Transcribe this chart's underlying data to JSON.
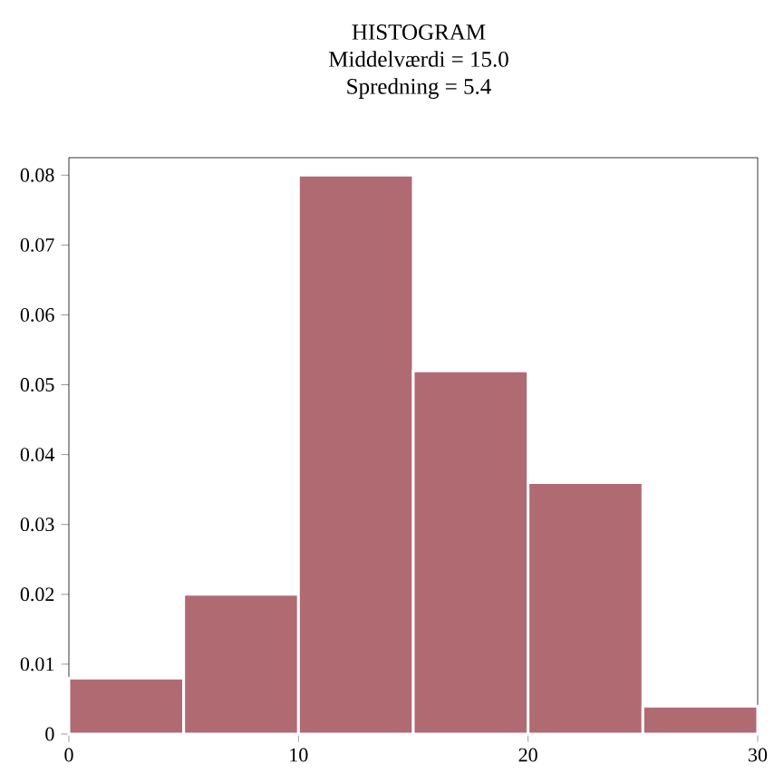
{
  "chart_data": {
    "type": "histogram",
    "title": "HISTOGRAM",
    "subtitle": "Middelværdi = 15.0",
    "annotations": [
      "Spredning = 5.4"
    ],
    "bins": [
      0,
      5,
      10,
      15,
      20,
      25,
      30
    ],
    "values": [
      0.008,
      0.02,
      0.08,
      0.052,
      0.036,
      0.004
    ],
    "color": "#b06a72",
    "xlim": [
      0,
      30
    ],
    "ylim": [
      0,
      0.0825
    ],
    "xticks": [
      0,
      10,
      20,
      30
    ],
    "yticks": [
      0,
      0.01,
      0.02,
      0.03,
      0.04,
      0.05,
      0.06,
      0.07,
      0.08
    ],
    "grid": false
  }
}
